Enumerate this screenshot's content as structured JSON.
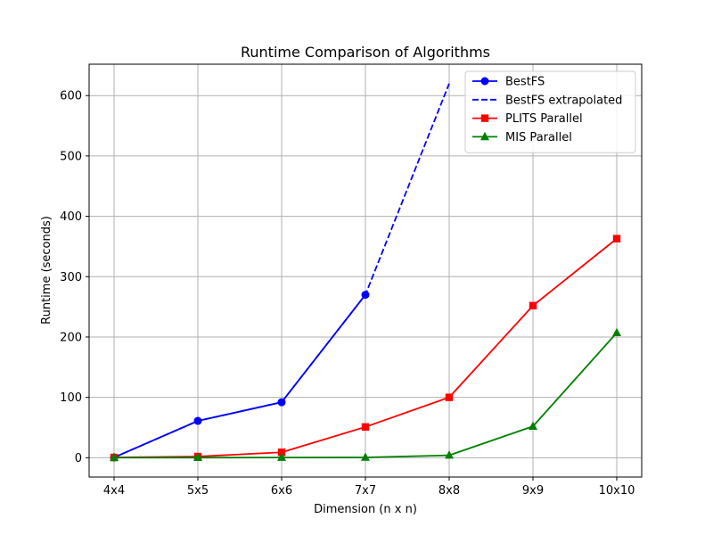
{
  "chart_data": {
    "type": "line",
    "title": "Runtime Comparison of Algorithms",
    "xlabel": "Dimension (n x n)",
    "ylabel": "Runtime (seconds)",
    "categories": [
      "4x4",
      "5x5",
      "6x6",
      "7x7",
      "8x8",
      "9x9",
      "10x10"
    ],
    "ylim": [
      -32,
      652
    ],
    "yticks": [
      0,
      100,
      200,
      300,
      400,
      500,
      600
    ],
    "grid": true,
    "legend_position": "top-right",
    "series": [
      {
        "name": "BestFS",
        "color": "#0000ff",
        "marker": "circle",
        "line": "solid",
        "values": [
          0.5,
          61,
          92,
          270,
          null,
          null,
          null
        ]
      },
      {
        "name": "BestFS extrapolated",
        "color": "#0000ff",
        "marker": "none",
        "line": "dashed",
        "values": [
          0.5,
          61,
          92,
          270,
          620,
          null,
          null
        ]
      },
      {
        "name": "PLITS Parallel",
        "color": "#ff0000",
        "marker": "square",
        "line": "solid",
        "values": [
          0.5,
          2,
          9,
          51,
          100,
          252,
          363
        ]
      },
      {
        "name": "MIS Parallel",
        "color": "#008000",
        "marker": "triangle",
        "line": "solid",
        "values": [
          0.1,
          0.2,
          0.3,
          0.5,
          4,
          52,
          207
        ]
      }
    ]
  }
}
